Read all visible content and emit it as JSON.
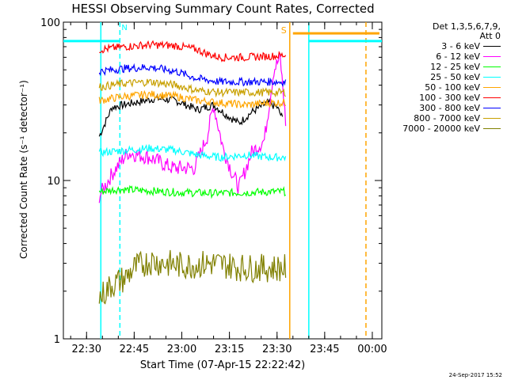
{
  "chart_data": {
    "type": "line",
    "title": "HESSI Observing Summary Count Rates, Corrected",
    "xlabel": "Start Time (07-Apr-15 22:22:42)",
    "ylabel": "Corrected Count Rate (s⁻¹ detector⁻¹)",
    "ylog": true,
    "ylim": [
      1,
      100
    ],
    "xlim": [
      "22:22:42",
      "00:03:00"
    ],
    "yticks": [
      "1",
      "10",
      "100"
    ],
    "xticks": [
      "22:30",
      "22:45",
      "23:00",
      "23:15",
      "23:30",
      "23:45",
      "00:00"
    ],
    "legend_header": [
      "Det 1,3,5,6,7,9,",
      "Att 0"
    ],
    "series": [
      {
        "name": "3 - 6 keV",
        "color": "#000000",
        "points": [
          [
            "22:34",
            "19"
          ],
          [
            "22:38",
            "29"
          ],
          [
            "22:45",
            "31"
          ],
          [
            "22:52",
            "33"
          ],
          [
            "22:58",
            "32"
          ],
          [
            "23:05",
            "28"
          ],
          [
            "23:10",
            "30"
          ],
          [
            "23:14",
            "26"
          ],
          [
            "23:18",
            "23"
          ],
          [
            "23:22",
            "27"
          ],
          [
            "23:27",
            "31"
          ],
          [
            "23:30",
            "29"
          ],
          [
            "23:32",
            "24"
          ]
        ]
      },
      {
        "name": "6 - 12 keV",
        "color": "#ff00ff",
        "points": [
          [
            "22:34",
            "8"
          ],
          [
            "22:38",
            "11"
          ],
          [
            "22:43",
            "15"
          ],
          [
            "22:50",
            "14"
          ],
          [
            "22:57",
            "12"
          ],
          [
            "23:04",
            "12"
          ],
          [
            "23:08",
            "19"
          ],
          [
            "23:10",
            "30"
          ],
          [
            "23:13",
            "16"
          ],
          [
            "23:16",
            "11"
          ],
          [
            "23:18",
            "9"
          ],
          [
            "23:22",
            "15"
          ],
          [
            "23:26",
            "18"
          ],
          [
            "23:29",
            "50"
          ],
          [
            "23:31",
            "60"
          ],
          [
            "23:33",
            "20"
          ]
        ]
      },
      {
        "name": "12 - 25 keV",
        "color": "#00ff00",
        "points": [
          [
            "22:34",
            "8.5"
          ],
          [
            "22:40",
            "8.8"
          ],
          [
            "22:50",
            "8.6"
          ],
          [
            "23:00",
            "8.4"
          ],
          [
            "23:10",
            "8.3"
          ],
          [
            "23:20",
            "8.4"
          ],
          [
            "23:30",
            "8.5"
          ],
          [
            "23:33",
            "8.5"
          ]
        ]
      },
      {
        "name": "25 - 50 keV",
        "color": "#00ffff",
        "points": [
          [
            "22:34",
            "15"
          ],
          [
            "22:42",
            "15.5"
          ],
          [
            "22:50",
            "16"
          ],
          [
            "22:58",
            "15.5"
          ],
          [
            "23:05",
            "14.5"
          ],
          [
            "23:12",
            "14"
          ],
          [
            "23:20",
            "14.5"
          ],
          [
            "23:28",
            "14"
          ],
          [
            "23:33",
            "14"
          ]
        ]
      },
      {
        "name": "50 - 100 keV",
        "color": "#ffa500",
        "points": [
          [
            "22:34",
            "32"
          ],
          [
            "22:42",
            "34"
          ],
          [
            "22:50",
            "35"
          ],
          [
            "22:58",
            "34"
          ],
          [
            "23:05",
            "32"
          ],
          [
            "23:12",
            "31"
          ],
          [
            "23:20",
            "30"
          ],
          [
            "23:28",
            "31"
          ],
          [
            "23:33",
            "31"
          ]
        ]
      },
      {
        "name": "100 - 300 keV",
        "color": "#ff0000",
        "points": [
          [
            "22:34",
            "67"
          ],
          [
            "22:42",
            "70"
          ],
          [
            "22:50",
            "72"
          ],
          [
            "22:58",
            "71"
          ],
          [
            "23:05",
            "67"
          ],
          [
            "23:08",
            "63"
          ],
          [
            "23:12",
            "60"
          ],
          [
            "23:20",
            "60"
          ],
          [
            "23:28",
            "61"
          ],
          [
            "23:33",
            "62"
          ]
        ]
      },
      {
        "name": "300 - 800 keV",
        "color": "#0000ff",
        "points": [
          [
            "22:34",
            "49"
          ],
          [
            "22:42",
            "51"
          ],
          [
            "22:50",
            "52"
          ],
          [
            "22:58",
            "49"
          ],
          [
            "23:05",
            "44"
          ],
          [
            "23:12",
            "42"
          ],
          [
            "23:20",
            "42"
          ],
          [
            "23:28",
            "42"
          ],
          [
            "23:33",
            "42"
          ]
        ]
      },
      {
        "name": "800 - 7000 keV",
        "color": "#c8a000",
        "points": [
          [
            "22:34",
            "39"
          ],
          [
            "22:42",
            "41"
          ],
          [
            "22:50",
            "42"
          ],
          [
            "22:58",
            "40"
          ],
          [
            "23:05",
            "37"
          ],
          [
            "23:12",
            "36"
          ],
          [
            "23:20",
            "36"
          ],
          [
            "23:28",
            "36"
          ],
          [
            "23:33",
            "36"
          ]
        ]
      },
      {
        "name": "7000 - 20000 keV",
        "color": "#808000",
        "points": [
          [
            "22:34",
            "1.8"
          ],
          [
            "22:38",
            "2.2"
          ],
          [
            "22:42",
            "2.4"
          ],
          [
            "22:45",
            "2.8"
          ],
          [
            "22:50",
            "3.1"
          ],
          [
            "23:00",
            "2.9"
          ],
          [
            "23:10",
            "3.0"
          ],
          [
            "23:20",
            "2.8"
          ],
          [
            "23:30",
            "2.8"
          ],
          [
            "23:33",
            "2.8"
          ]
        ]
      }
    ],
    "markers": [
      {
        "label": "N",
        "color": "#00ffff"
      },
      {
        "label": "S",
        "color": "#ffa500"
      }
    ]
  },
  "timestamp": "24-Sep-2017 15:52"
}
